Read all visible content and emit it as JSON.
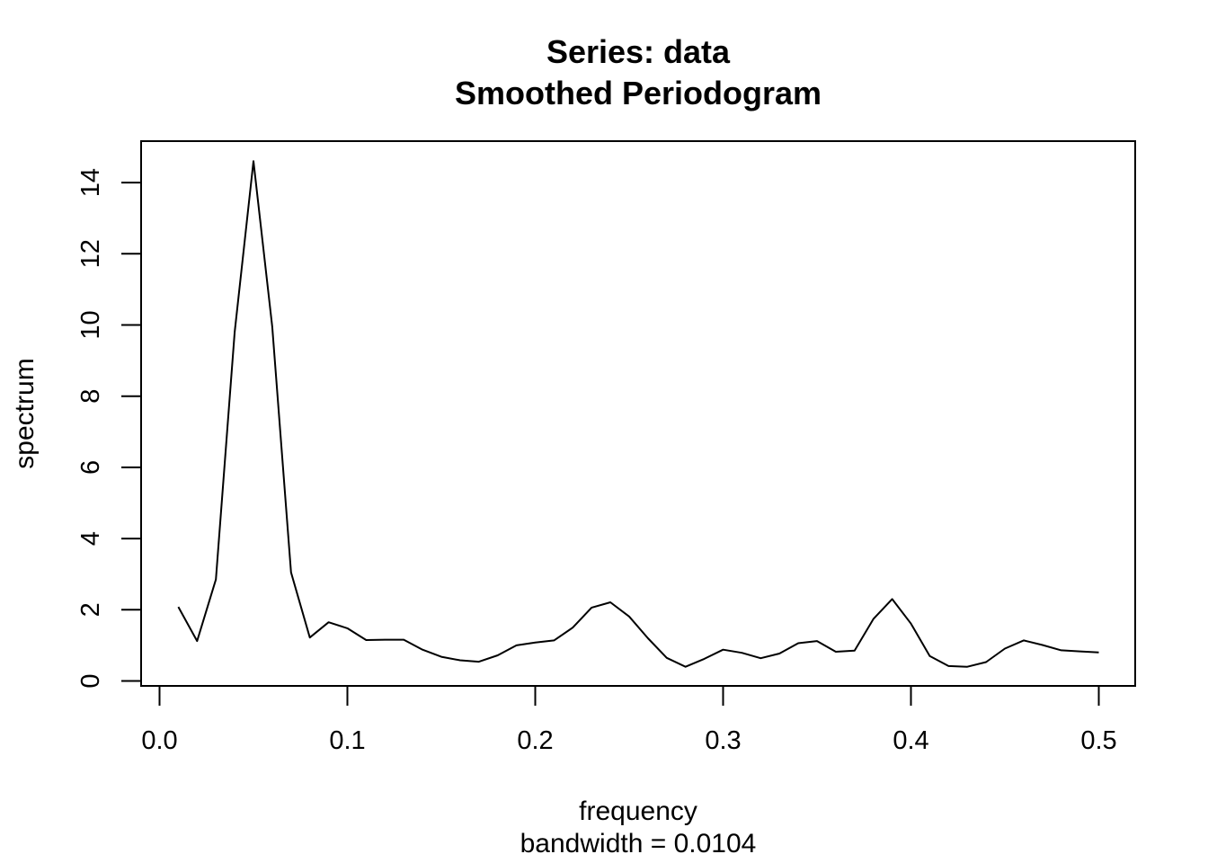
{
  "chart_data": {
    "type": "line",
    "title": "Series: data",
    "subtitle": "Smoothed Periodogram",
    "xlabel": "frequency",
    "xsublabel": "bandwidth = 0.0104",
    "ylabel": "spectrum",
    "xlim": [
      0.0,
      0.5
    ],
    "ylim": [
      0,
      14.6
    ],
    "x_ticks": [
      0.0,
      0.1,
      0.2,
      0.3,
      0.4,
      0.5
    ],
    "x_tick_labels": [
      "0.0",
      "0.1",
      "0.2",
      "0.3",
      "0.4",
      "0.5"
    ],
    "y_ticks": [
      0,
      2,
      4,
      6,
      8,
      10,
      12,
      14
    ],
    "y_tick_labels": [
      "0",
      "2",
      "4",
      "6",
      "8",
      "10",
      "12",
      "14"
    ],
    "grid": false,
    "line_color": "#000000",
    "x": [
      0.01,
      0.02,
      0.03,
      0.04,
      0.05,
      0.06,
      0.07,
      0.08,
      0.09,
      0.1,
      0.11,
      0.12,
      0.13,
      0.14,
      0.15,
      0.16,
      0.17,
      0.18,
      0.19,
      0.2,
      0.21,
      0.22,
      0.23,
      0.24,
      0.25,
      0.26,
      0.27,
      0.28,
      0.29,
      0.3,
      0.31,
      0.32,
      0.33,
      0.34,
      0.35,
      0.36,
      0.37,
      0.38,
      0.39,
      0.4,
      0.41,
      0.42,
      0.43,
      0.44,
      0.45,
      0.46,
      0.47,
      0.48,
      0.49,
      0.5
    ],
    "values": [
      2.08,
      1.12,
      2.85,
      9.8,
      14.6,
      9.95,
      3.05,
      1.22,
      1.65,
      1.48,
      1.15,
      1.16,
      1.16,
      0.88,
      0.68,
      0.58,
      0.54,
      0.72,
      1.0,
      1.08,
      1.14,
      1.5,
      2.06,
      2.21,
      1.81,
      1.2,
      0.65,
      0.4,
      0.62,
      0.88,
      0.79,
      0.64,
      0.77,
      1.06,
      1.12,
      0.82,
      0.85,
      1.74,
      2.3,
      1.61,
      0.7,
      0.42,
      0.4,
      0.53,
      0.91,
      1.14,
      1.01,
      0.86,
      0.83,
      0.8
    ]
  }
}
